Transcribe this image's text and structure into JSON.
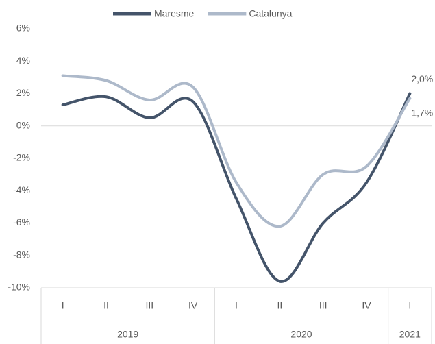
{
  "chart_data": {
    "type": "line",
    "categories": [
      "I",
      "II",
      "III",
      "IV",
      "I",
      "II",
      "III",
      "IV",
      "I"
    ],
    "years": [
      "2019",
      "2019",
      "2019",
      "2019",
      "2020",
      "2020",
      "2020",
      "2020",
      "2021"
    ],
    "series": [
      {
        "name": "Maresme",
        "color": "#44546a",
        "values": [
          1.3,
          1.8,
          0.5,
          1.5,
          -4.5,
          -9.6,
          -6.0,
          -3.5,
          2.0
        ],
        "value_labels": [
          null,
          null,
          null,
          null,
          null,
          null,
          null,
          null,
          "2,0%"
        ]
      },
      {
        "name": "Catalunya",
        "color": "#adb9ca",
        "values": [
          3.1,
          2.8,
          1.6,
          2.4,
          -3.5,
          -6.2,
          -3.0,
          -2.5,
          1.7
        ],
        "value_labels": [
          null,
          null,
          null,
          null,
          null,
          null,
          null,
          null,
          "1,7%"
        ]
      }
    ],
    "ylim": [
      -10,
      6
    ],
    "yticks": [
      {
        "value": -10,
        "label": "-10%"
      },
      {
        "value": -8,
        "label": "-8%"
      },
      {
        "value": -6,
        "label": "-6%"
      },
      {
        "value": -4,
        "label": "-4%"
      },
      {
        "value": -2,
        "label": "-2%"
      },
      {
        "value": 0,
        "label": "0%"
      },
      {
        "value": 2,
        "label": "2%"
      },
      {
        "value": 4,
        "label": "4%"
      },
      {
        "value": 6,
        "label": "6%"
      }
    ],
    "smooth": true,
    "legend": "top"
  }
}
